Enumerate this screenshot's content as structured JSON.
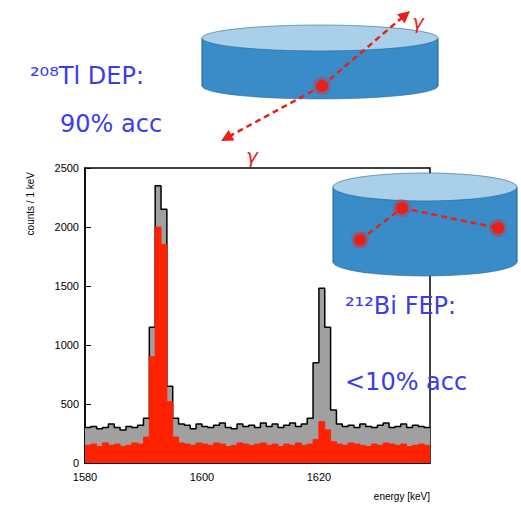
{
  "chart_data": {
    "type": "histogram",
    "x_label": "energy [keV]",
    "y_label": "counts / 1 keV",
    "bins": [
      1580,
      1581,
      1582,
      1583,
      1584,
      1585,
      1586,
      1587,
      1588,
      1589,
      1590,
      1591,
      1592,
      1593,
      1594,
      1595,
      1596,
      1597,
      1598,
      1599,
      1600,
      1601,
      1602,
      1603,
      1604,
      1605,
      1606,
      1607,
      1608,
      1609,
      1610,
      1611,
      1612,
      1613,
      1614,
      1615,
      1616,
      1617,
      1618,
      1619,
      1620,
      1621,
      1622,
      1623,
      1624,
      1625,
      1626,
      1627,
      1628,
      1629,
      1630,
      1631,
      1632,
      1633,
      1634,
      1635,
      1636,
      1637,
      1638,
      1639
    ],
    "series": [
      {
        "color": "#a0a0a0",
        "values": [
          300,
          310,
          290,
          300,
          330,
          300,
          280,
          310,
          300,
          320,
          380,
          1150,
          2350,
          2150,
          650,
          380,
          330,
          320,
          290,
          330,
          310,
          300,
          320,
          340,
          300,
          290,
          330,
          310,
          320,
          300,
          340,
          310,
          330,
          300,
          320,
          340,
          310,
          330,
          380,
          850,
          1480,
          1150,
          450,
          330,
          310,
          320,
          300,
          330,
          310,
          300,
          320,
          340,
          300,
          310,
          330,
          300,
          320,
          310,
          300
        ]
      },
      {
        "color": "#ff2200",
        "values": [
          150,
          160,
          140,
          170,
          150,
          160,
          140,
          150,
          170,
          160,
          220,
          900,
          2000,
          1850,
          520,
          220,
          170,
          160,
          150,
          170,
          160,
          150,
          170,
          160,
          140,
          150,
          170,
          160,
          150,
          160,
          170,
          150,
          160,
          140,
          160,
          150,
          170,
          150,
          160,
          200,
          350,
          280,
          180,
          160,
          150,
          170,
          160,
          150,
          140,
          160,
          150,
          170,
          160,
          150,
          160,
          140,
          150,
          160,
          150
        ]
      }
    ],
    "xlim": [
      1580,
      1639
    ],
    "xticks": [
      1580,
      1600,
      1620
    ],
    "ylim": [
      0,
      2500
    ],
    "yticks": [
      0,
      500,
      1000,
      1500,
      2000,
      2500
    ],
    "grid": false,
    "annotations": [
      {
        "lines": [
          "²⁰⁸Tl DEP:",
          "90% acc"
        ],
        "color": "#3b3bf0"
      },
      {
        "lines": [
          "²¹²Bi FEP:",
          "<10% acc"
        ],
        "color": "#3b3bf0"
      }
    ],
    "gamma_labels": [
      "γ",
      "γ"
    ]
  }
}
